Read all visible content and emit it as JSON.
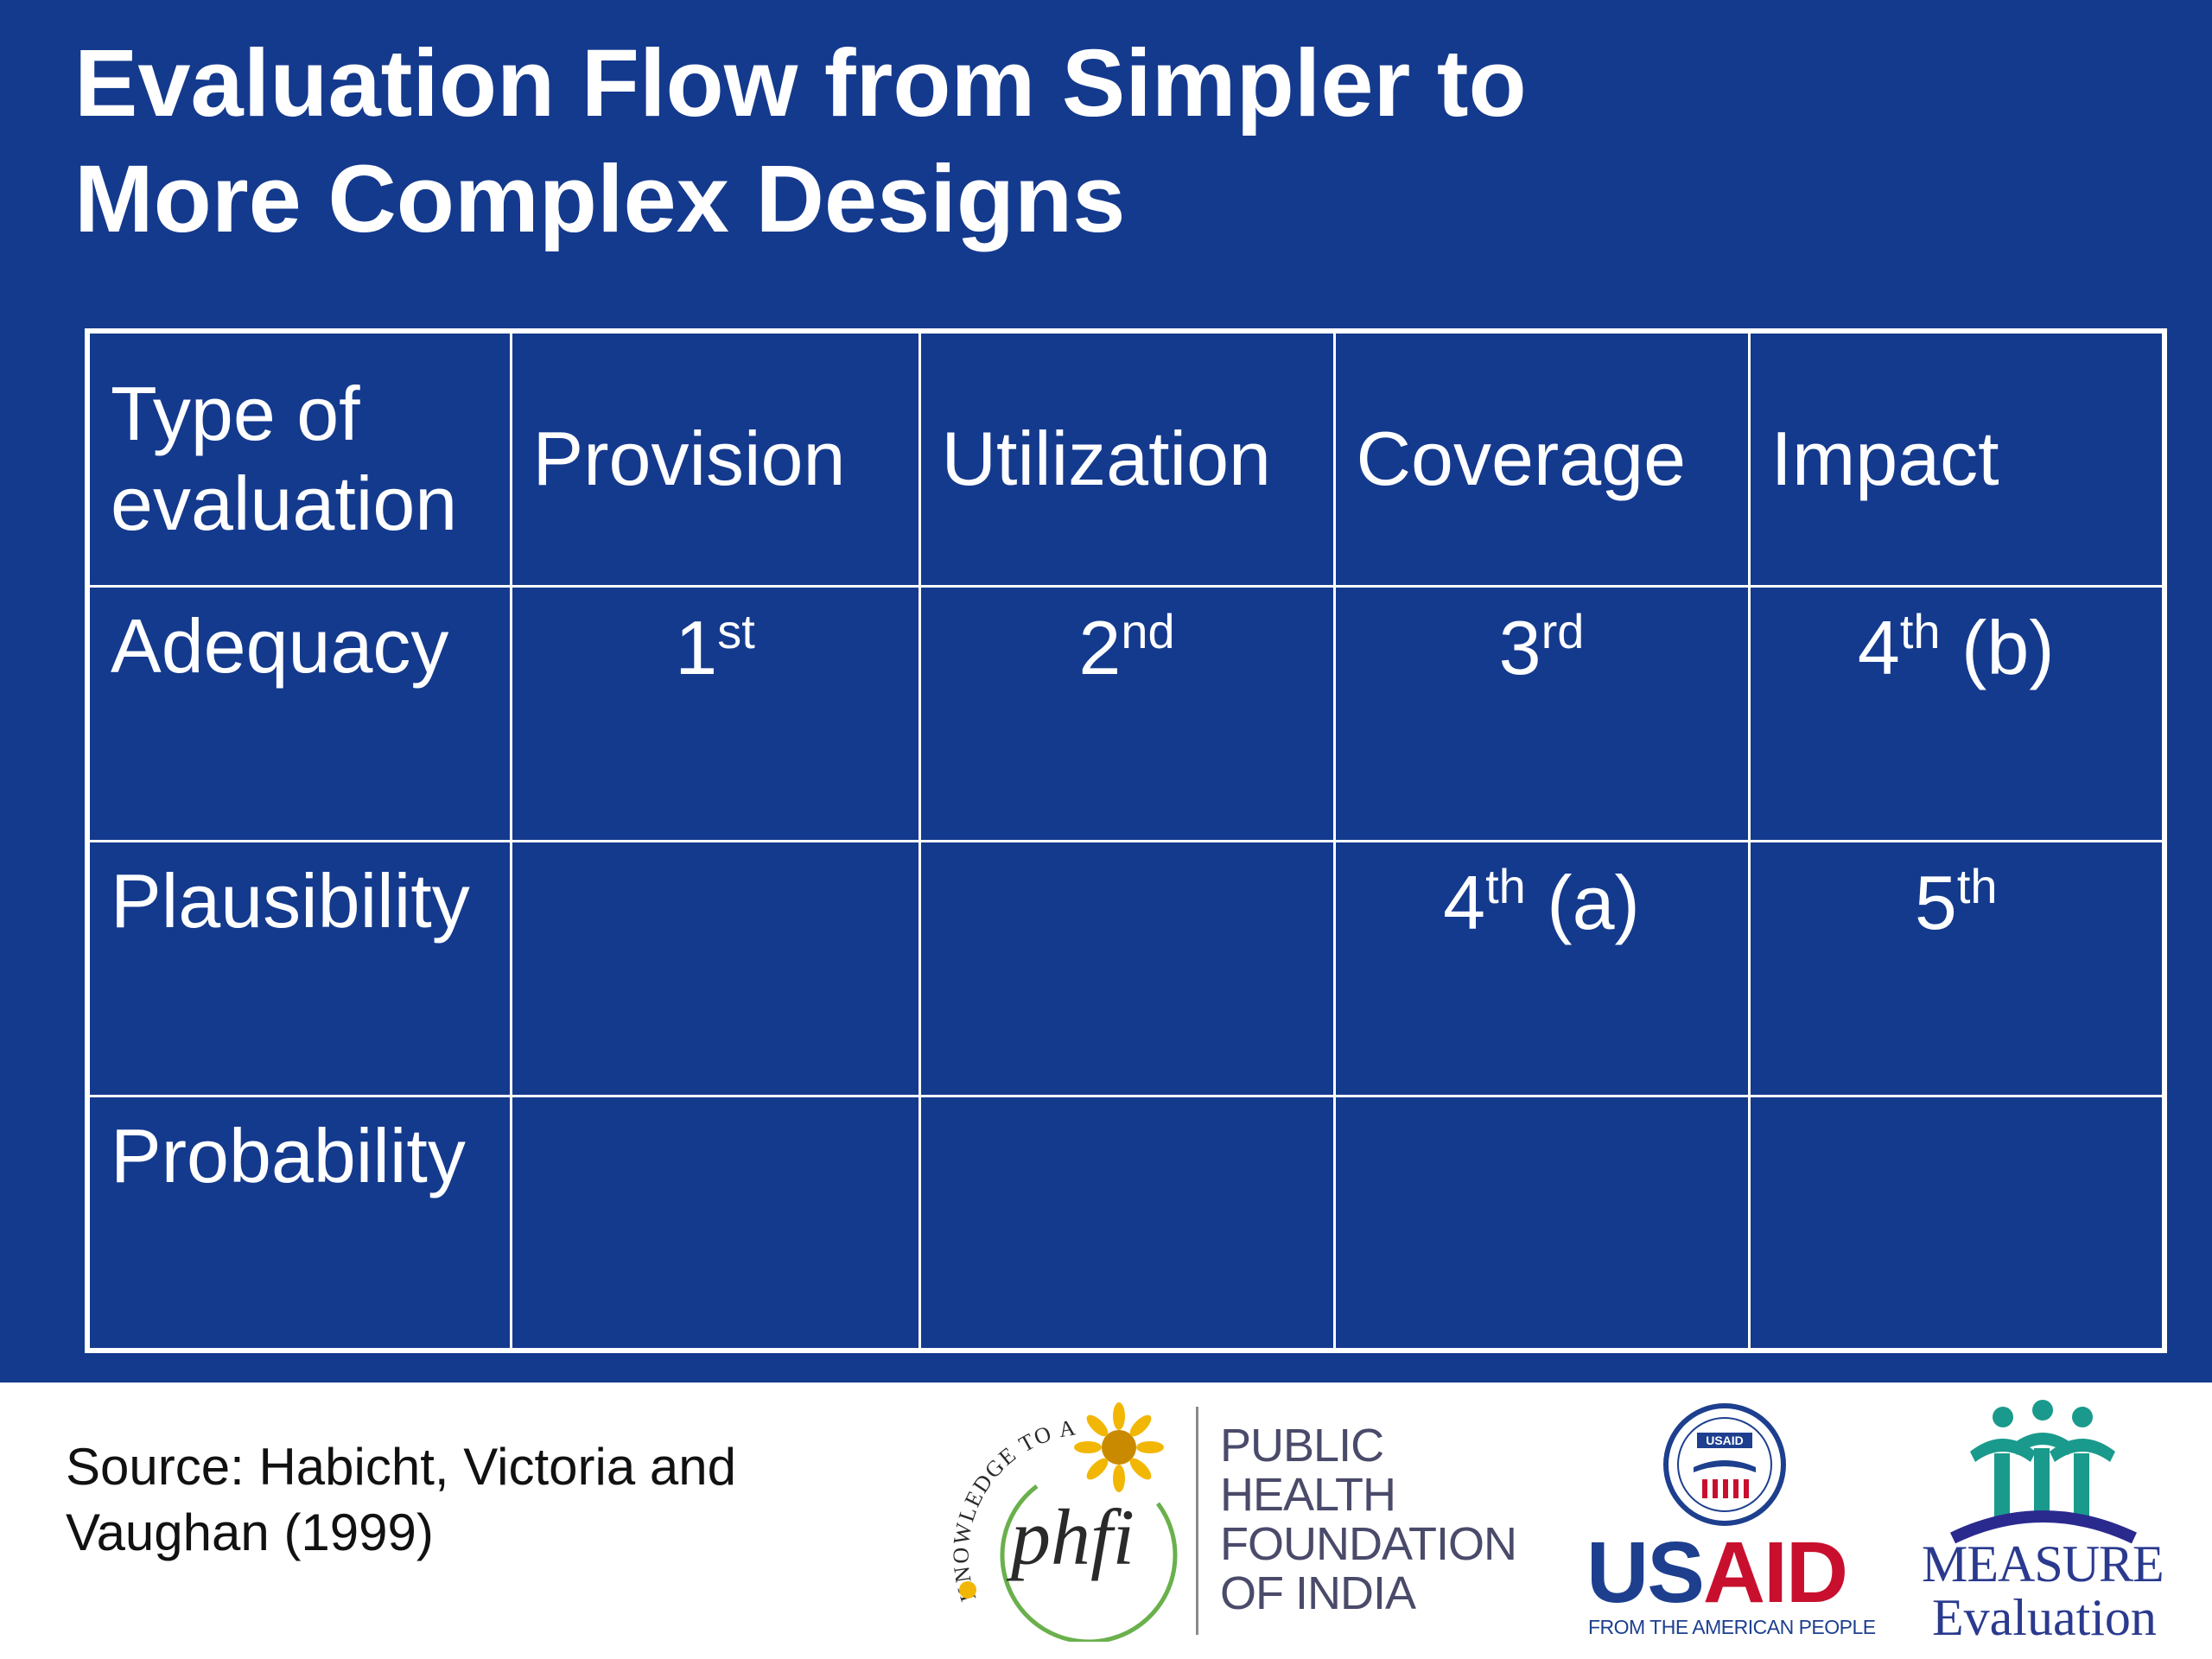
{
  "title": {
    "line1": "Evaluation Flow from Simpler to",
    "line2": "More Complex Designs"
  },
  "table": {
    "header": {
      "row_label_line1": "Type of",
      "row_label_line2": "evaluation",
      "columns": [
        "Provision",
        "Utilization",
        "Coverage",
        "Impact"
      ]
    },
    "rows": [
      {
        "label": "Adequacy",
        "cells": [
          {
            "num": "1",
            "sup": "st",
            "suffix": ""
          },
          {
            "num": "2",
            "sup": "nd",
            "suffix": ""
          },
          {
            "num": "3",
            "sup": "rd",
            "suffix": ""
          },
          {
            "num": "4",
            "sup": "th",
            "suffix": " (b)"
          }
        ]
      },
      {
        "label": "Plausibility",
        "cells": [
          {
            "num": "",
            "sup": "",
            "suffix": ""
          },
          {
            "num": "",
            "sup": "",
            "suffix": ""
          },
          {
            "num": "4",
            "sup": "th",
            "suffix": " (a)"
          },
          {
            "num": "5",
            "sup": "th",
            "suffix": ""
          }
        ]
      },
      {
        "label": "Probability",
        "cells": [
          {
            "num": "",
            "sup": "",
            "suffix": ""
          },
          {
            "num": "",
            "sup": "",
            "suffix": ""
          },
          {
            "num": "",
            "sup": "",
            "suffix": ""
          },
          {
            "num": "",
            "sup": "",
            "suffix": ""
          }
        ]
      }
    ]
  },
  "footer": {
    "source_line1": "Source: Habicht, Victoria and",
    "source_line2": "Vaughan (1999)"
  },
  "logos": {
    "phfi": {
      "arc_text": "KNOWLEDGE TO ACTION",
      "mark": "phfi",
      "name_lines": [
        "PUBLIC",
        "HEALTH",
        "FOUNDATION",
        "OF INDIA"
      ],
      "icon": "sunflower-icon"
    },
    "usaid": {
      "seal_text": "USAID",
      "word_us": "US",
      "word_aid": "AID",
      "tagline": "FROM THE AMERICAN PEOPLE",
      "icon": "usaid-seal-icon"
    },
    "measure": {
      "word": "MEASURE",
      "subword": "Evaluation",
      "icon": "people-figures-icon"
    }
  },
  "colors": {
    "slide_background": "#143a8e",
    "text_on_slide": "#ffffff",
    "usaid_blue": "#1d3f8e",
    "usaid_red": "#c8102e",
    "measure_teal": "#1a9a8c",
    "phfi_yellow": "#f2b705",
    "phfi_green": "#6ab04c"
  }
}
